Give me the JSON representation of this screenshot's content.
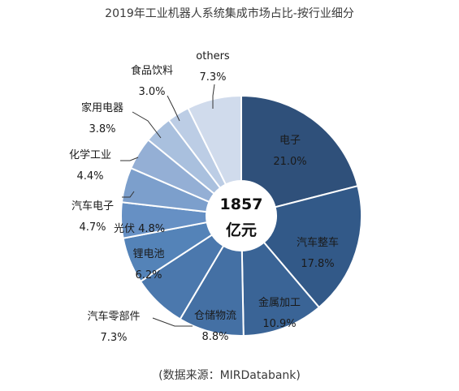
{
  "title": "2019年工业机器人系统集成市场占比-按行业细分",
  "source": "(数据来源：MIRDatabank)",
  "center": {
    "line1": "1857",
    "line2": "亿元"
  },
  "chart_data": {
    "type": "pie",
    "title": "2019年工业机器人系统集成市场占比-按行业细分",
    "total": "1857亿元",
    "slices": [
      {
        "name": "电子",
        "value": 21.0,
        "label": "21.0%",
        "color": "#2f507a"
      },
      {
        "name": "汽车整车",
        "value": 17.8,
        "label": "17.8%",
        "color": "#325988"
      },
      {
        "name": "金属加工",
        "value": 10.9,
        "label": "10.9%",
        "color": "#3a6496"
      },
      {
        "name": "仓储物流",
        "value": 8.8,
        "label": "8.8%",
        "color": "#4470a4"
      },
      {
        "name": "汽车零部件",
        "value": 7.3,
        "label": "7.3%",
        "color": "#4b78ad"
      },
      {
        "name": "锂电池",
        "value": 6.2,
        "label": "6.2%",
        "color": "#5483b8"
      },
      {
        "name": "光伏",
        "value": 4.8,
        "label": "4.8%",
        "color": "#6690c4"
      },
      {
        "name": "汽车电子",
        "value": 4.7,
        "label": "4.7%",
        "color": "#7c9fcc"
      },
      {
        "name": "化学工业",
        "value": 4.4,
        "label": "4.4%",
        "color": "#94afd5"
      },
      {
        "name": "家用电器",
        "value": 3.8,
        "label": "3.8%",
        "color": "#a9c0de"
      },
      {
        "name": "食品饮料",
        "value": 3.0,
        "label": "3.0%",
        "color": "#bccde5"
      },
      {
        "name": "others",
        "value": 7.3,
        "label": "7.3%",
        "color": "#d0dbec"
      }
    ]
  }
}
